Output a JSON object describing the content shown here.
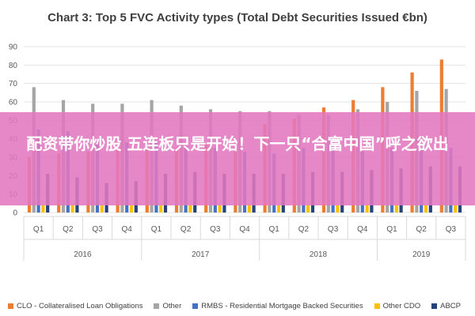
{
  "chart_data": {
    "type": "bar",
    "title": "Chart 3: Top 5 FVC Activity types (Total Debt Securities Issued €bn)",
    "ylim": [
      0,
      90
    ],
    "yticks": [
      0,
      10,
      20,
      30,
      40,
      50,
      60,
      70,
      80,
      90
    ],
    "grid": true,
    "legend_position": "bottom",
    "categories": [
      "Q1",
      "Q2",
      "Q3",
      "Q4",
      "Q1",
      "Q2",
      "Q3",
      "Q4",
      "Q1",
      "Q2",
      "Q3",
      "Q4",
      "Q1",
      "Q2",
      "Q3"
    ],
    "year_groups": [
      {
        "label": "2016",
        "count": 4
      },
      {
        "label": "2017",
        "count": 4
      },
      {
        "label": "2018",
        "count": 4
      },
      {
        "label": "2019",
        "count": 3
      }
    ],
    "series": [
      {
        "name": "CLO - Collateralised Loan Obligations",
        "color": "#ED7D31",
        "values": [
          30,
          32,
          33,
          34,
          34,
          35,
          37,
          38,
          48,
          51,
          57,
          61,
          68,
          76,
          83
        ]
      },
      {
        "name": "Other",
        "color": "#A5A5A5",
        "values": [
          68,
          61,
          59,
          59,
          61,
          58,
          56,
          55,
          55,
          53,
          53,
          56,
          60,
          66,
          67
        ]
      },
      {
        "name": "RMBS - Residential Mortgage Backed Securities",
        "color": "#4472C4",
        "values": [
          45,
          44,
          39,
          38,
          38,
          36,
          35,
          33,
          32,
          35,
          38,
          35,
          35,
          34,
          35
        ]
      },
      {
        "name": "Other CDO",
        "color": "#FFC000",
        "values": [
          4,
          4,
          4,
          4,
          4,
          4,
          4,
          4,
          4,
          4,
          4,
          4,
          4,
          4,
          4
        ]
      },
      {
        "name": "ABCP",
        "color": "#264478",
        "values": [
          21,
          19,
          16,
          17,
          21,
          22,
          21,
          21,
          21,
          22,
          22,
          23,
          24,
          25,
          25
        ]
      }
    ]
  },
  "overlay": {
    "text": "配资带你炒股 五连板只是开始！下一只“合富中国”呼之欲出"
  }
}
